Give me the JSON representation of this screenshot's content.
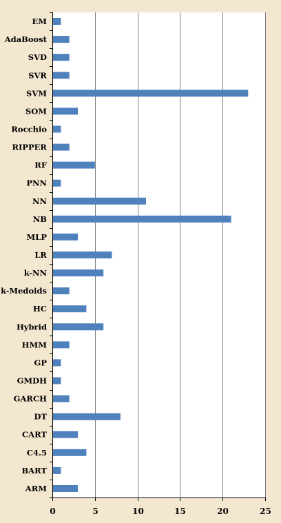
{
  "chart_data": {
    "type": "bar",
    "orientation": "horizontal",
    "categories": [
      "EM",
      "AdaBoost",
      "SVD",
      "SVR",
      "SVM",
      "SOM",
      "Rocchio",
      "RIPPER",
      "RF",
      "PNN",
      "NN",
      "NB",
      "MLP",
      "LR",
      "k-NN",
      "k-Medoids",
      "HC",
      "Hybrid",
      "HMM",
      "GP",
      "GMDH",
      "GARCH",
      "DT",
      "CART",
      "C4.5",
      "BART",
      "ARM"
    ],
    "values": [
      1,
      2,
      2,
      2,
      23,
      3,
      1,
      2,
      5,
      1,
      11,
      21,
      3,
      7,
      6,
      2,
      4,
      6,
      2,
      1,
      1,
      2,
      8,
      3,
      4,
      1,
      3
    ],
    "xlim": [
      0,
      25
    ],
    "xticks": [
      0,
      5,
      10,
      15,
      20,
      25
    ],
    "grid": true,
    "legend": "none",
    "bar_color": "#4f81bd",
    "background_color": "#f3e7cf",
    "plot_area_color": "#ffffff"
  }
}
